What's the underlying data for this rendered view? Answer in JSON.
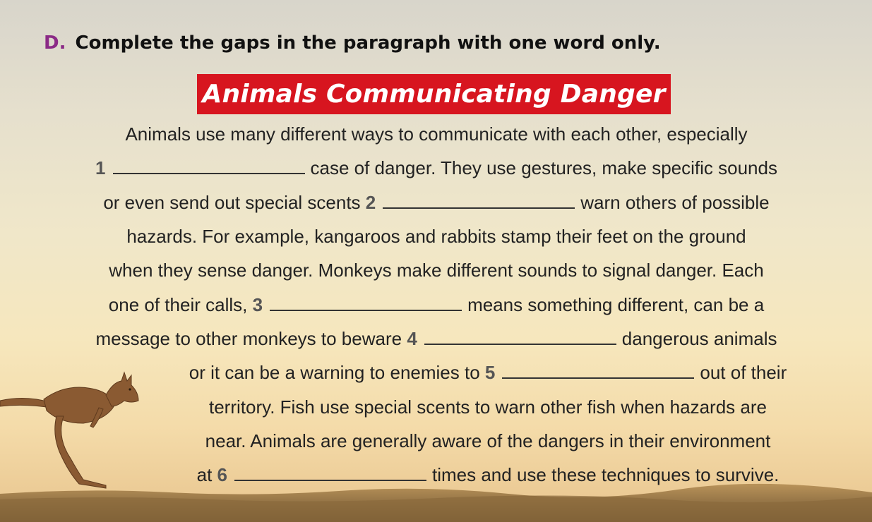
{
  "instruction": {
    "letter": "D.",
    "text": "Complete the gaps in the paragraph with one word only."
  },
  "title": "Animals Communicating Danger",
  "gaps": [
    "1",
    "2",
    "3",
    "4",
    "5",
    "6"
  ],
  "text": {
    "l1": "Animals use many different ways to communicate with each other, especially",
    "l2b": "case of danger. They use gestures, make specific sounds",
    "l3a": "or even send out special scents",
    "l3b": "warn others of possible",
    "l4": "hazards. For example, kangaroos and rabbits stamp their feet on the ground",
    "l5": "when they sense danger. Monkeys make different sounds to signal danger. Each",
    "l6a": "one of their calls,",
    "l6b": "means something different, can be a",
    "l7a": "message to other monkeys to beware",
    "l7b": "dangerous animals",
    "l8a": "or it can be a warning to enemies to",
    "l8b": "out of their",
    "l9": "territory. Fish use special scents to warn other fish when hazards are",
    "l10": "near. Animals are generally aware of the dangers in their environment",
    "l11a": "at",
    "l11b": "times and use these techniques to survive."
  },
  "illustration": {
    "icon": "kangaroo-icon"
  },
  "colors": {
    "title_bg": "#d7151f",
    "letter": "#8b2a86"
  }
}
